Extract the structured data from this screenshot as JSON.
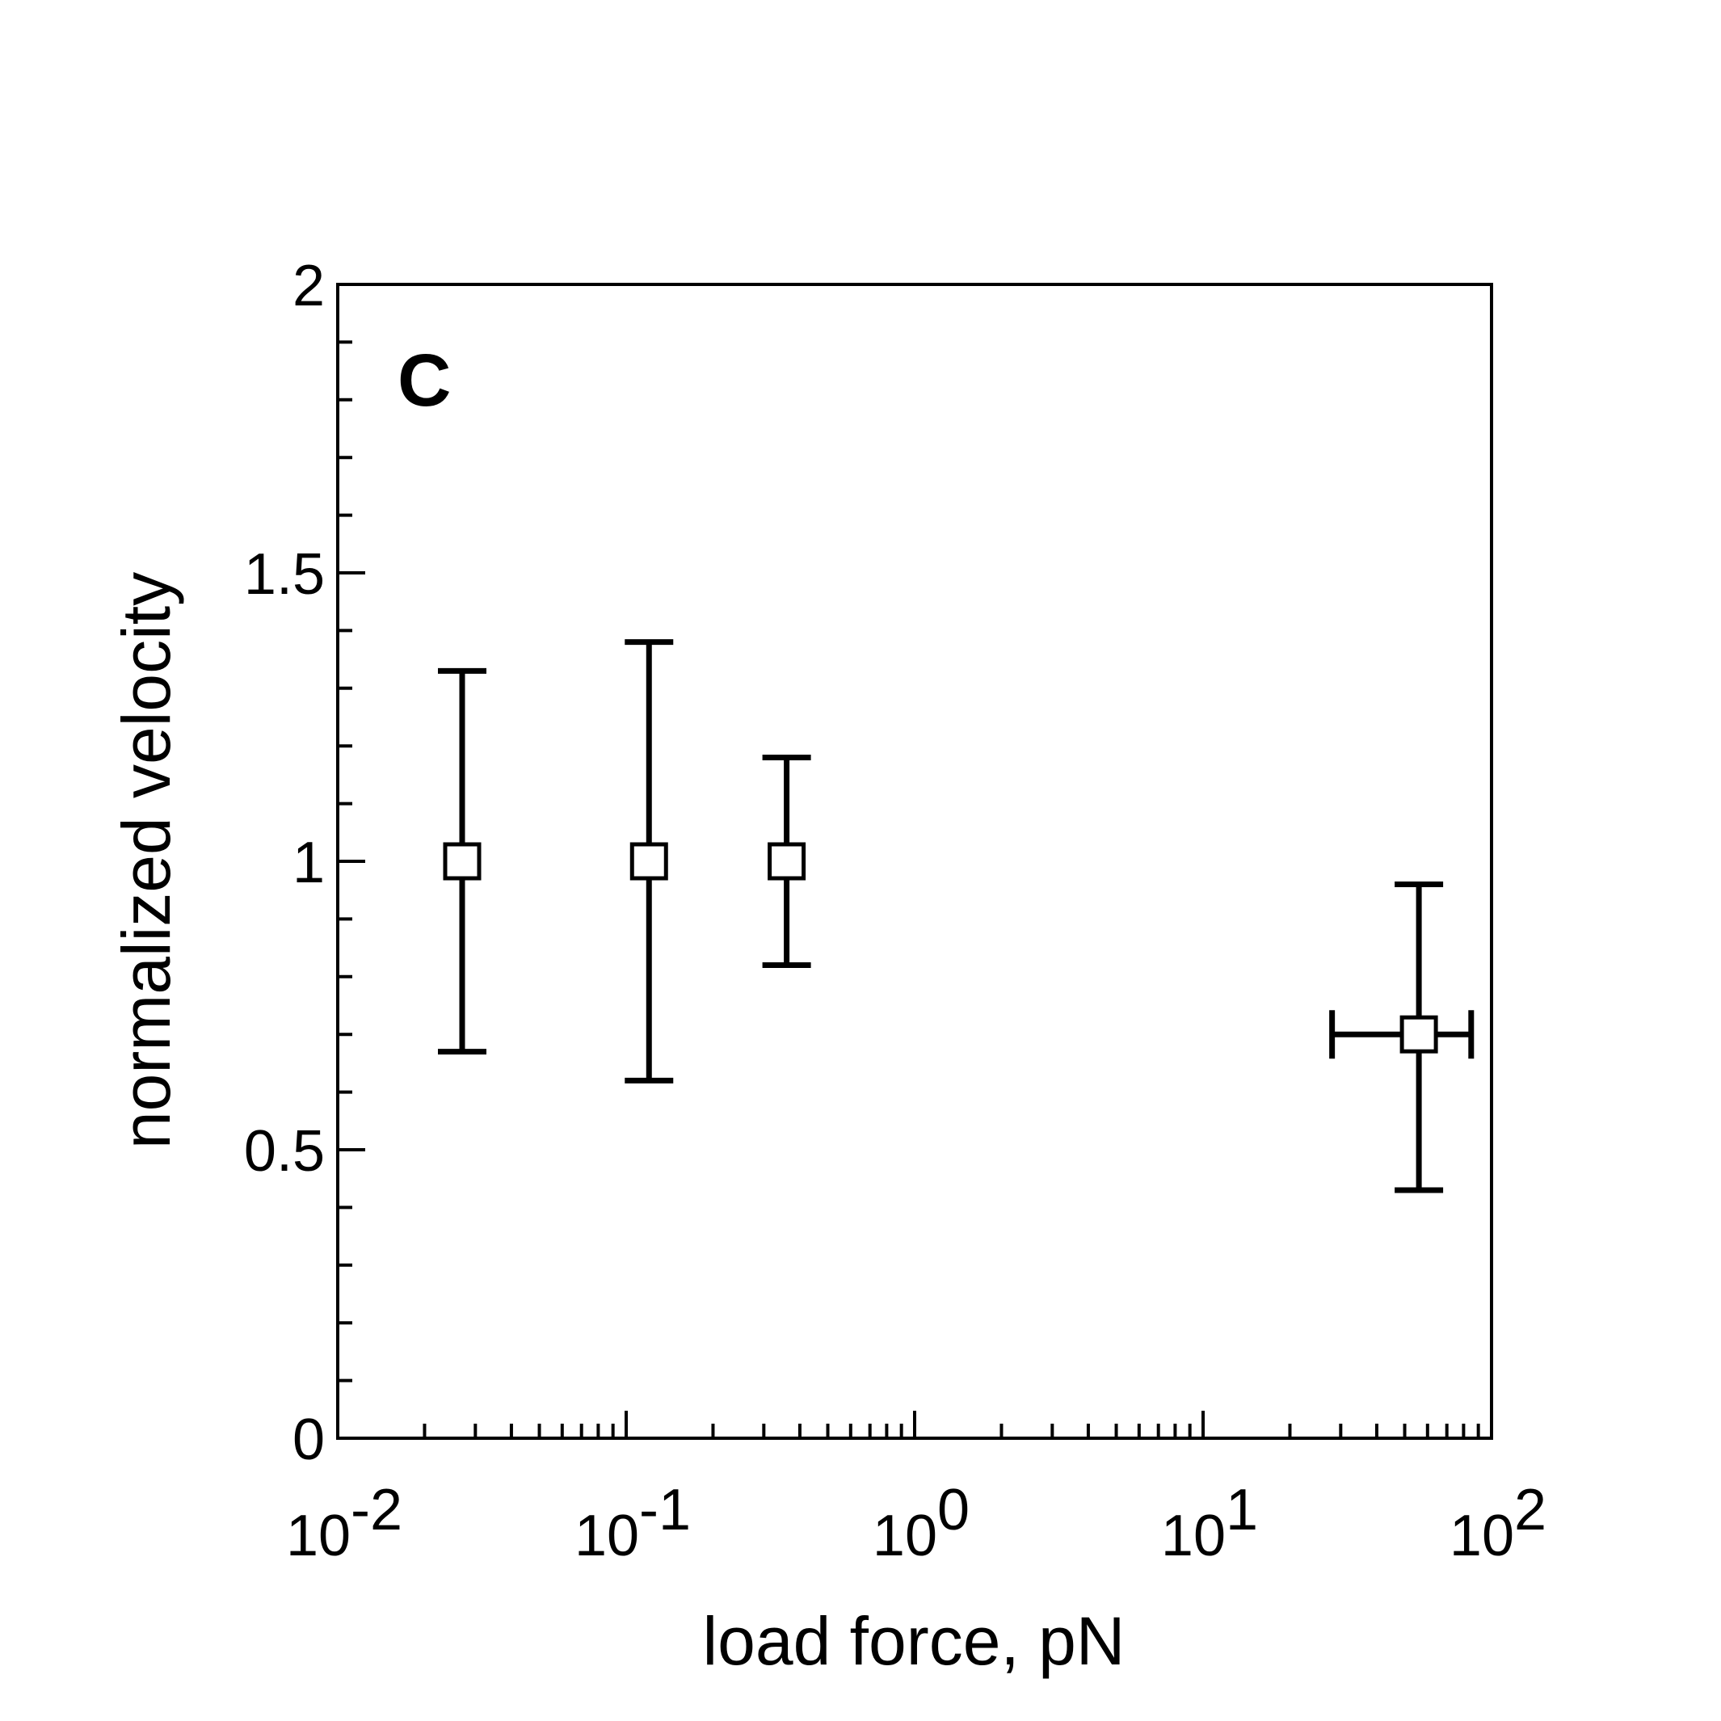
{
  "chart_data": {
    "type": "scatter",
    "panel_label": "C",
    "xlabel": "load force, pN",
    "ylabel": "normalized velocity",
    "x_scale": "log",
    "xlim": [
      0.01,
      100
    ],
    "ylim": [
      0,
      2
    ],
    "x_ticks": [
      {
        "value": 0.01,
        "base": "10",
        "exp": "-2"
      },
      {
        "value": 0.1,
        "base": "10",
        "exp": "-1"
      },
      {
        "value": 1,
        "base": "10",
        "exp": "0"
      },
      {
        "value": 10,
        "base": "10",
        "exp": "1"
      },
      {
        "value": 100,
        "base": "10",
        "exp": "2"
      }
    ],
    "y_ticks": [
      {
        "value": 0,
        "label": "0"
      },
      {
        "value": 0.5,
        "label": "0.5"
      },
      {
        "value": 1,
        "label": "1"
      },
      {
        "value": 1.5,
        "label": "1.5"
      },
      {
        "value": 2,
        "label": "2"
      }
    ],
    "y_minor_step": 0.1,
    "grid": false,
    "marker": "open-square",
    "points": [
      {
        "x": 0.027,
        "y": 1.0,
        "y_err_low": 0.67,
        "y_err_high": 1.33
      },
      {
        "x": 0.12,
        "y": 1.0,
        "y_err_low": 0.62,
        "y_err_high": 1.38
      },
      {
        "x": 0.36,
        "y": 1.0,
        "y_err_low": 0.82,
        "y_err_high": 1.18
      },
      {
        "x": 56,
        "y": 0.7,
        "y_err_low": 0.43,
        "y_err_high": 0.96,
        "x_err_low": 28,
        "x_err_high": 85
      }
    ],
    "colors": {
      "line": "#000000",
      "marker_fill": "#ffffff"
    }
  }
}
